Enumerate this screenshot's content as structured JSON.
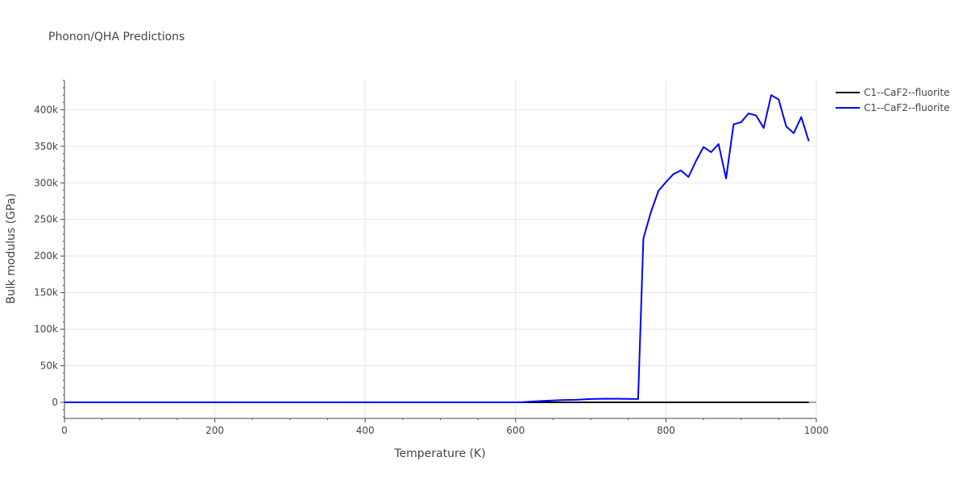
{
  "chart_data": {
    "type": "line",
    "title": "Phonon/QHA Predictions",
    "xlabel": "Temperature (K)",
    "ylabel": "Bulk modulus (GPa)",
    "xlim": [
      0,
      1000
    ],
    "ylim": [
      -22000,
      440000
    ],
    "grid": true,
    "legend_position": "top-right",
    "x_ticks": [
      0,
      200,
      400,
      600,
      800,
      1000
    ],
    "x_tick_labels": [
      "0",
      "200",
      "400",
      "600",
      "800",
      "1000"
    ],
    "y_ticks": [
      0,
      50000,
      100000,
      150000,
      200000,
      250000,
      300000,
      350000,
      400000
    ],
    "y_tick_labels": [
      "0",
      "50k",
      "100k",
      "150k",
      "200k",
      "250k",
      "300k",
      "350k",
      "400k"
    ],
    "series": [
      {
        "name": "C1--CaF2--fluorite",
        "color": "#000000",
        "x": [
          0,
          100,
          200,
          300,
          400,
          500,
          600,
          700,
          800,
          900,
          990
        ],
        "y": [
          0,
          0,
          0,
          0,
          0,
          0,
          0,
          0,
          0,
          0,
          0
        ]
      },
      {
        "name": "C1--CaF2--fluorite",
        "color": "#0000ff",
        "x": [
          0,
          100,
          200,
          300,
          400,
          500,
          600,
          610,
          620,
          640,
          660,
          680,
          690,
          700,
          720,
          740,
          750,
          763,
          770,
          780,
          790,
          800,
          810,
          820,
          830,
          840,
          850,
          860,
          870,
          880,
          890,
          900,
          910,
          920,
          930,
          940,
          950,
          960,
          970,
          980,
          990
        ],
        "y": [
          0,
          0,
          0,
          0,
          0,
          0,
          0,
          300,
          1000,
          2000,
          3000,
          3500,
          4000,
          4500,
          5000,
          4800,
          4700,
          4500,
          224000,
          260000,
          289000,
          301000,
          312000,
          317000,
          308000,
          330000,
          349000,
          342000,
          353000,
          306000,
          380000,
          383000,
          395000,
          392000,
          375000,
          420000,
          414000,
          377000,
          368000,
          390000,
          357000
        ]
      }
    ]
  }
}
